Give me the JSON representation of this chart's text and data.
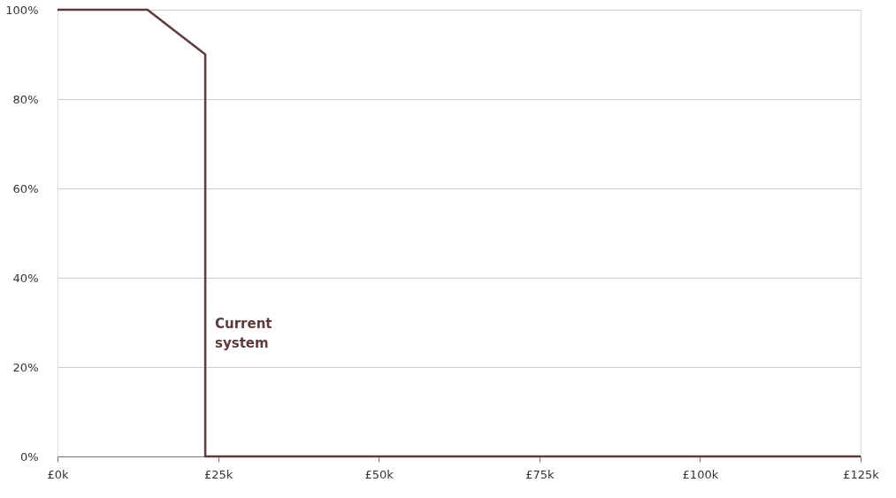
{
  "chart_data": {
    "type": "line",
    "x": [
      0,
      14,
      23,
      23,
      125
    ],
    "series": [
      {
        "color": "#5c3b3b",
        "values": [
          100,
          100,
          90,
          0,
          0
        ]
      }
    ],
    "xlim": [
      0,
      125
    ],
    "xticks": [
      {
        "value": 0,
        "label": "£0k"
      },
      {
        "value": 25,
        "label": "£25k"
      },
      {
        "value": 50,
        "label": "£50k"
      },
      {
        "value": 75,
        "label": "£75k"
      },
      {
        "value": 100,
        "label": "£100k"
      },
      {
        "value": 125,
        "label": "£125k"
      }
    ],
    "ylim": [
      0,
      100
    ],
    "yticks": [
      {
        "value": 0,
        "label": "0%"
      },
      {
        "value": 20,
        "label": "20%"
      },
      {
        "value": 40,
        "label": "40%"
      },
      {
        "value": 60,
        "label": "60%"
      },
      {
        "value": 80,
        "label": "80%"
      },
      {
        "value": 100,
        "label": "100%"
      }
    ],
    "grid": "y",
    "marker": "none",
    "line_style": "solid",
    "annotations": [
      "Current system"
    ]
  }
}
